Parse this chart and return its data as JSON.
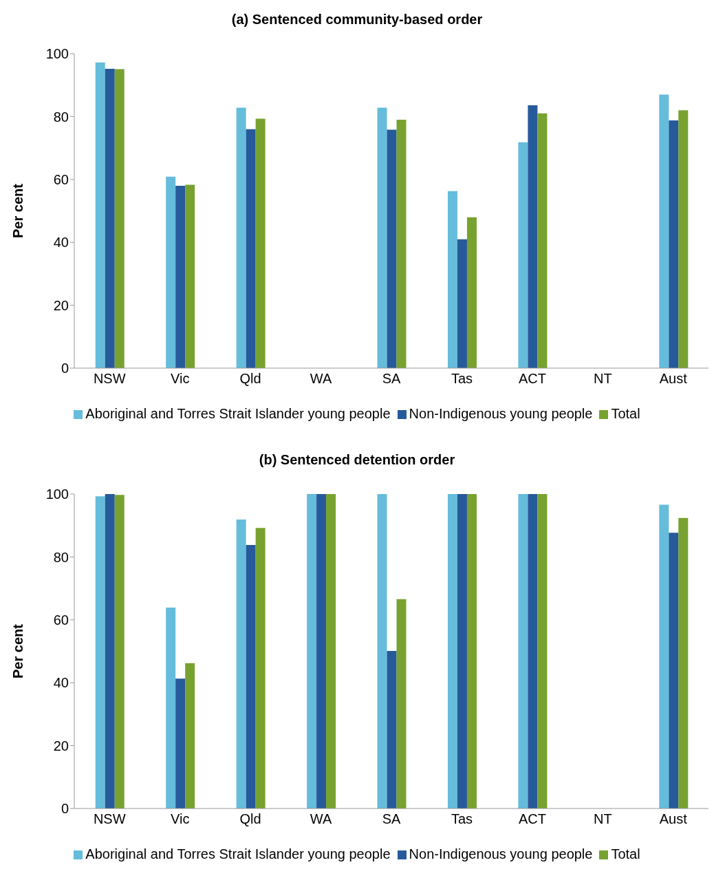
{
  "chart_data": [
    {
      "type": "bar",
      "title": "(a) Sentenced community-based order",
      "ylabel": "Per cent",
      "categories": [
        "NSW",
        "Vic",
        "Qld",
        "WA",
        "SA",
        "Tas",
        "ACT",
        "NT",
        "Aust"
      ],
      "series": [
        {
          "name": "Aboriginal and Torres Strait Islander young people",
          "color": "#65bcdb",
          "values": [
            97.2,
            60.9,
            82.8,
            null,
            82.8,
            56.3,
            71.8,
            null,
            87.0
          ]
        },
        {
          "name": "Non-Indigenous young people",
          "color": "#275a9a",
          "values": [
            95.2,
            58.0,
            76.0,
            null,
            75.8,
            41.0,
            83.6,
            null,
            78.8
          ]
        },
        {
          "name": "Total",
          "color": "#78a22f",
          "values": [
            95.1,
            58.3,
            79.3,
            null,
            79.0,
            48.0,
            81.0,
            null,
            82.0
          ]
        }
      ],
      "ylim": [
        0,
        100
      ],
      "yticks": [
        0,
        20,
        40,
        60,
        80,
        100
      ],
      "grid": false,
      "legend": "bottom"
    },
    {
      "type": "bar",
      "title": "(b) Sentenced detention order",
      "ylabel": "Per cent",
      "categories": [
        "NSW",
        "Vic",
        "Qld",
        "WA",
        "SA",
        "Tas",
        "ACT",
        "NT",
        "Aust"
      ],
      "series": [
        {
          "name": "Aboriginal and Torres Strait Islander young people",
          "color": "#65bcdb",
          "values": [
            99.3,
            63.9,
            91.9,
            100,
            100,
            100,
            100,
            null,
            96.6
          ]
        },
        {
          "name": "Non-Indigenous young people",
          "color": "#275a9a",
          "values": [
            100,
            41.3,
            83.8,
            100,
            50.1,
            100,
            100,
            null,
            87.7
          ]
        },
        {
          "name": "Total",
          "color": "#78a22f",
          "values": [
            99.7,
            46.2,
            89.2,
            100,
            66.6,
            100,
            100,
            null,
            92.4
          ]
        }
      ],
      "ylim": [
        0,
        100
      ],
      "yticks": [
        0,
        20,
        40,
        60,
        80,
        100
      ],
      "grid": false,
      "legend": "bottom"
    }
  ]
}
